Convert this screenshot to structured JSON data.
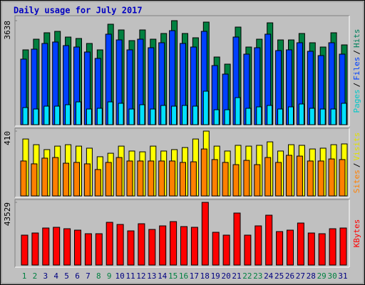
{
  "chart_data": [
    {
      "type": "bar",
      "title": "Daily usage for July 2017",
      "legend_separator": "/",
      "ylim": [
        0,
        3638
      ],
      "yticks": [
        3638
      ],
      "series": [
        {
          "name": "Hits",
          "color": "#008040",
          "label_color": "#00805c",
          "values": [
            2617,
            2990,
            3215,
            3264,
            3065,
            3015,
            2841,
            2617,
            3514,
            3314,
            2941,
            3314,
            2990,
            3190,
            3638,
            3190,
            3040,
            3588,
            2367,
            2118,
            3414,
            2716,
            2990,
            3563,
            2965,
            2965,
            3190,
            2866,
            2716,
            3215,
            2791
          ]
        },
        {
          "name": "Files",
          "color": "#0040ff",
          "label_color": "#0040ff",
          "values": [
            2293,
            2641,
            2841,
            2891,
            2766,
            2716,
            2542,
            2318,
            3165,
            2965,
            2617,
            2990,
            2691,
            2866,
            3289,
            2841,
            2716,
            3264,
            2068,
            1769,
            3065,
            2467,
            2691,
            3165,
            2592,
            2617,
            2866,
            2567,
            2417,
            2866,
            2467
          ]
        },
        {
          "name": "Pages",
          "color": "#00e0ff",
          "label_color": "#00c8c8",
          "values": [
            598,
            548,
            648,
            648,
            698,
            797,
            548,
            573,
            797,
            748,
            548,
            698,
            548,
            673,
            648,
            673,
            648,
            1171,
            523,
            523,
            947,
            573,
            623,
            673,
            548,
            623,
            723,
            573,
            548,
            548,
            748
          ]
        }
      ]
    },
    {
      "type": "bar",
      "legend_separator": "/",
      "ylim": [
        0,
        410
      ],
      "yticks": [
        410
      ],
      "series": [
        {
          "name": "Visits",
          "color": "#ffff00",
          "label_color": "#e0e000",
          "values": [
            360,
            324,
            293,
            315,
            324,
            315,
            302,
            248,
            270,
            315,
            284,
            279,
            315,
            284,
            293,
            306,
            360,
            410,
            315,
            284,
            320,
            315,
            320,
            342,
            284,
            324,
            320,
            297,
            302,
            324,
            329
          ]
        },
        {
          "name": "Sites",
          "color": "#ff8000",
          "label_color": "#ff8000",
          "values": [
            221,
            203,
            239,
            243,
            207,
            212,
            203,
            167,
            212,
            243,
            221,
            221,
            221,
            221,
            221,
            212,
            216,
            297,
            230,
            212,
            198,
            225,
            198,
            243,
            212,
            257,
            252,
            221,
            221,
            234,
            230
          ]
        }
      ]
    },
    {
      "type": "bar",
      "ylim": [
        0,
        43529
      ],
      "yticks": [
        43529
      ],
      "categories": [
        "1",
        "2",
        "3",
        "4",
        "5",
        "6",
        "7",
        "8",
        "9",
        "10",
        "11",
        "12",
        "13",
        "14",
        "15",
        "16",
        "17",
        "18",
        "19",
        "20",
        "21",
        "22",
        "23",
        "24",
        "25",
        "26",
        "27",
        "28",
        "29",
        "30",
        "31"
      ],
      "x_label_colors": [
        "#008040",
        "#008040",
        "#000080",
        "#000080",
        "#000080",
        "#000080",
        "#000080",
        "#008040",
        "#008040",
        "#000080",
        "#000080",
        "#000080",
        "#000080",
        "#000080",
        "#008040",
        "#008040",
        "#000080",
        "#000080",
        "#000080",
        "#000080",
        "#000080",
        "#008040",
        "#008040",
        "#000080",
        "#000080",
        "#000080",
        "#000080",
        "#000080",
        "#008040",
        "#008040",
        "#000080"
      ],
      "series": [
        {
          "name": "KBytes",
          "color": "#ff0000",
          "label_color": "#ff0000",
          "values": [
            20775,
            22258,
            25720,
            26214,
            25225,
            24236,
            21763,
            21763,
            29676,
            28193,
            23741,
            28687,
            24731,
            27204,
            30171,
            26709,
            26214,
            43529,
            22752,
            20774,
            36107,
            20774,
            27204,
            34622,
            23247,
            24236,
            29182,
            22258,
            21763,
            25225,
            25720
          ]
        }
      ]
    }
  ]
}
